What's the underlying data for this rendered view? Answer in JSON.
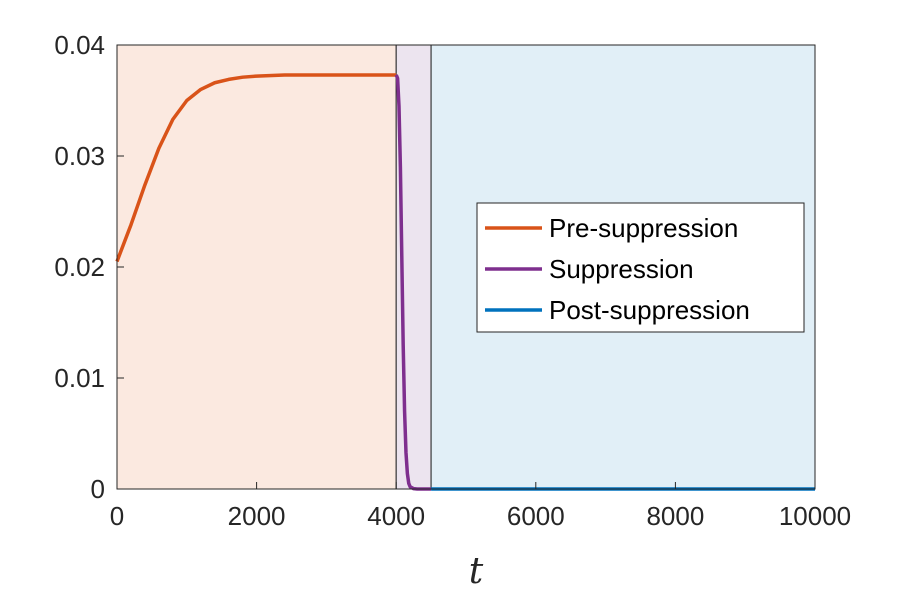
{
  "chart_data": {
    "type": "line",
    "title": "",
    "xlabel": "t",
    "ylabel": "",
    "xlim": [
      0,
      10000
    ],
    "ylim": [
      0,
      0.04
    ],
    "x_ticks": [
      0,
      2000,
      4000,
      6000,
      8000,
      10000
    ],
    "x_tick_labels": [
      "0",
      "2000",
      "4000",
      "6000",
      "8000",
      "10000"
    ],
    "y_ticks": [
      0,
      0.01,
      0.02,
      0.03,
      0.04
    ],
    "y_tick_labels": [
      "0",
      "0.01",
      "0.02",
      "0.03",
      "0.04"
    ],
    "grid": false,
    "legend_position": "right-center",
    "regions": [
      {
        "x_start": 0,
        "x_end": 4000,
        "color": "#fbe9e0"
      },
      {
        "x_start": 4000,
        "x_end": 4500,
        "color": "#ece4ef"
      },
      {
        "x_start": 4500,
        "x_end": 10000,
        "color": "#e1eff7"
      }
    ],
    "series": [
      {
        "name": "Pre-suppression",
        "color": "#d95319",
        "x": [
          0,
          200,
          400,
          600,
          800,
          1000,
          1200,
          1400,
          1600,
          1800,
          2000,
          2400,
          2800,
          3200,
          3600,
          4000
        ],
        "y": [
          0.0205,
          0.0238,
          0.0274,
          0.0307,
          0.0333,
          0.035,
          0.036,
          0.0366,
          0.0369,
          0.0371,
          0.0372,
          0.0373,
          0.0373,
          0.0373,
          0.0373,
          0.0373
        ]
      },
      {
        "name": "Suppression",
        "color": "#7e2f8e",
        "x": [
          4000,
          4020,
          4040,
          4060,
          4080,
          4100,
          4120,
          4140,
          4160,
          4180,
          4200,
          4250,
          4300,
          4400,
          4500
        ],
        "y": [
          0.0373,
          0.037,
          0.0345,
          0.029,
          0.021,
          0.013,
          0.007,
          0.0033,
          0.0014,
          0.0005,
          0.0002,
          3e-05,
          0.0,
          0.0,
          0.0
        ]
      },
      {
        "name": "Post-suppression",
        "color": "#0072bd",
        "x": [
          4500,
          6000,
          8000,
          10000
        ],
        "y": [
          0.0,
          0.0,
          0.0,
          0.0
        ]
      }
    ]
  }
}
